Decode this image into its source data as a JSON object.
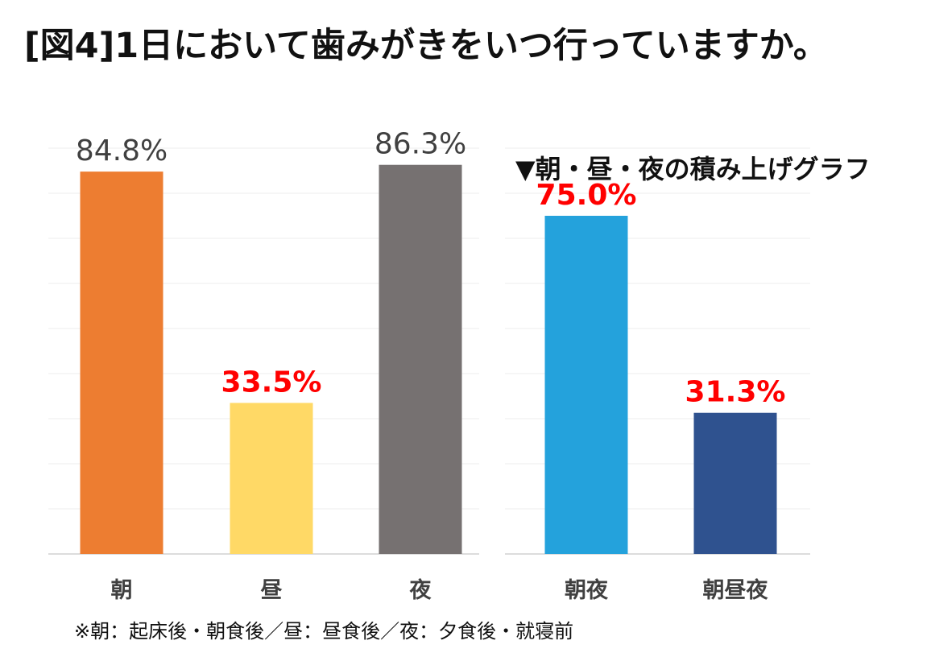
{
  "title": "[図4]1日において歯みがきをいつ行っていますか。",
  "footnote": "※朝：起床後・朝食後／昼：昼食後／夜：夕食後・就寝前",
  "chart_data": [
    {
      "type": "bar",
      "title": "",
      "categories": [
        "朝",
        "昼",
        "夜"
      ],
      "values": [
        84.8,
        33.5,
        86.3
      ],
      "labels": [
        "84.8%",
        "33.5%",
        "86.3%"
      ],
      "colors": [
        "#ED7D31",
        "#FFD966",
        "#767171"
      ],
      "label_colors": [
        "#404040",
        "#FF0000",
        "#404040"
      ],
      "ylim": [
        0,
        100
      ],
      "grid": true,
      "xlabel": "",
      "ylabel": ""
    },
    {
      "type": "bar",
      "title": "▼朝・昼・夜の積み上げグラフ",
      "categories": [
        "朝夜",
        "朝昼夜"
      ],
      "values": [
        75.0,
        31.3
      ],
      "labels": [
        "75.0%",
        "31.3%"
      ],
      "colors": [
        "#24A2DC",
        "#2F528F"
      ],
      "label_colors": [
        "#FF0000",
        "#FF0000"
      ],
      "ylim": [
        0,
        100
      ],
      "grid": true,
      "xlabel": "",
      "ylabel": ""
    }
  ]
}
